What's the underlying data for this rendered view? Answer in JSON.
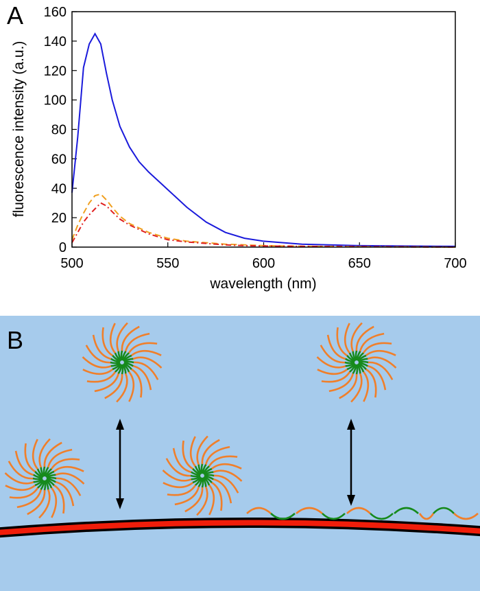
{
  "chart_data": {
    "type": "line",
    "panel_label": "A",
    "x_label": "wavelength (nm)",
    "y_label": "fluorescence intensity (a.u.)",
    "x": [
      500,
      503,
      506,
      509,
      512,
      515,
      518,
      521,
      525,
      530,
      535,
      540,
      545,
      550,
      560,
      570,
      580,
      590,
      600,
      620,
      650,
      700
    ],
    "series": [
      {
        "color": "#1a1adb",
        "style": "solid",
        "values": [
          37,
          75,
          122,
          138,
          145,
          138,
          118,
          100,
          82,
          68,
          58,
          51,
          45,
          39,
          27,
          17,
          10,
          6,
          4,
          2,
          1,
          0.5
        ]
      },
      {
        "color": "#f0a020",
        "style": "dashed",
        "values": [
          5,
          15,
          23,
          30,
          35,
          36,
          32,
          27,
          21,
          16,
          13,
          10,
          8,
          6,
          4,
          3,
          2,
          1.5,
          1,
          0.6,
          0.3,
          0
        ]
      },
      {
        "color": "#e02020",
        "style": "dashdot",
        "values": [
          3,
          10,
          17,
          22,
          26,
          30,
          28,
          24,
          19,
          15,
          12,
          9,
          7,
          5,
          3.5,
          2.5,
          1.5,
          1,
          0.8,
          0.5,
          0.3,
          0
        ]
      }
    ],
    "xlim": [
      500,
      700
    ],
    "xticks": [
      500,
      550,
      600,
      650,
      700
    ],
    "ylim": [
      0,
      160
    ],
    "yticks": [
      0,
      20,
      40,
      60,
      80,
      100,
      120,
      140,
      160
    ]
  },
  "diagram": {
    "panel_label": "B"
  }
}
